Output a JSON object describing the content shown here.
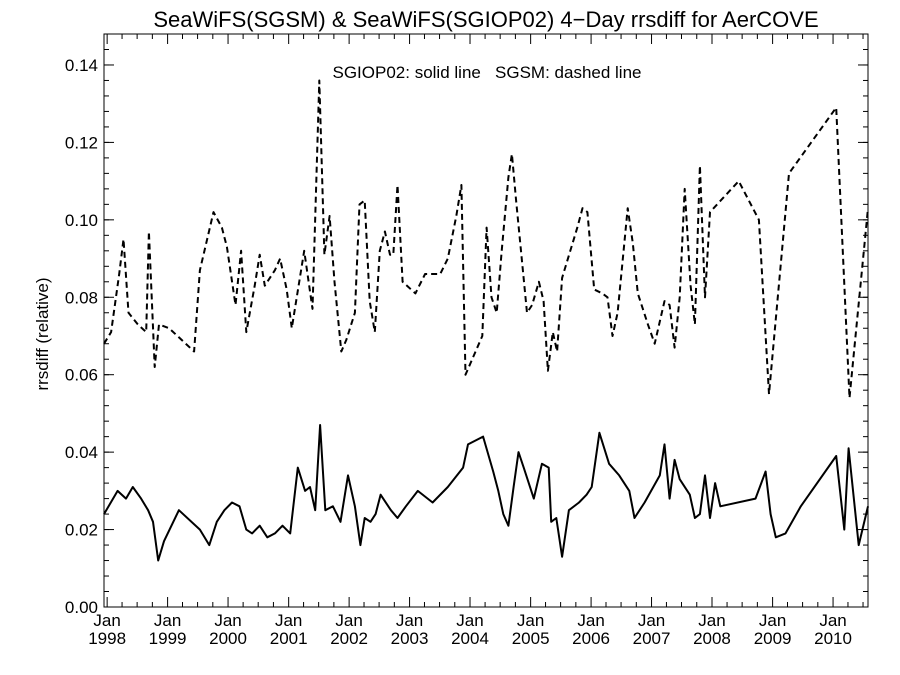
{
  "chart_data": {
    "type": "line",
    "title": "SeaWiFS(SGSM) & SeaWiFS(SGIOP02) 4−Day rrsdiff for AerCOVE",
    "ylabel": "rrsdiff (relative)",
    "xlabel": "",
    "annotation": "SGIOP02: solid line   SGSM: dashed line",
    "x_axis": "date",
    "xlim": [
      "1997-12-13",
      "2010-07-31"
    ],
    "ylim": [
      0,
      0.148
    ],
    "y_ticks": [
      "0.00",
      "0.02",
      "0.04",
      "0.06",
      "0.08",
      "0.10",
      "0.12",
      "0.14"
    ],
    "y_tick_values": [
      0,
      0.02,
      0.04,
      0.06,
      0.08,
      0.1,
      0.12,
      0.14
    ],
    "x_ticks": [
      {
        "date": "1998-01-01",
        "month": "Jan",
        "year": "1998"
      },
      {
        "date": "1999-01-01",
        "month": "Jan",
        "year": "1999"
      },
      {
        "date": "2000-01-01",
        "month": "Jan",
        "year": "2000"
      },
      {
        "date": "2001-01-01",
        "month": "Jan",
        "year": "2001"
      },
      {
        "date": "2002-01-01",
        "month": "Jan",
        "year": "2002"
      },
      {
        "date": "2003-01-01",
        "month": "Jan",
        "year": "2003"
      },
      {
        "date": "2004-01-01",
        "month": "Jan",
        "year": "2004"
      },
      {
        "date": "2005-01-01",
        "month": "Jan",
        "year": "2005"
      },
      {
        "date": "2006-01-01",
        "month": "Jan",
        "year": "2006"
      },
      {
        "date": "2007-01-01",
        "month": "Jan",
        "year": "2007"
      },
      {
        "date": "2008-01-01",
        "month": "Jan",
        "year": "2008"
      },
      {
        "date": "2009-01-01",
        "month": "Jan",
        "year": "2009"
      },
      {
        "date": "2010-01-01",
        "month": "Jan",
        "year": "2010"
      }
    ],
    "grid": false,
    "series": [
      {
        "name": "SGSM",
        "style": "dashed",
        "color": "#000000",
        "points": [
          [
            "1997-12-13",
            0.068
          ],
          [
            "1998-01-25",
            0.071
          ],
          [
            "1998-03-15",
            0.086
          ],
          [
            "1998-04-10",
            0.095
          ],
          [
            "1998-05-10",
            0.076
          ],
          [
            "1998-07-05",
            0.073
          ],
          [
            "1998-08-25",
            0.071
          ],
          [
            "1998-09-10",
            0.097
          ],
          [
            "1998-10-15",
            0.062
          ],
          [
            "1998-11-10",
            0.073
          ],
          [
            "1999-01-10",
            0.072
          ],
          [
            "1999-06-10",
            0.066
          ],
          [
            "1999-07-15",
            0.087
          ],
          [
            "1999-10-05",
            0.102
          ],
          [
            "1999-11-25",
            0.098
          ],
          [
            "1999-12-25",
            0.093
          ],
          [
            "2000-02-15",
            0.078
          ],
          [
            "2000-03-20",
            0.092
          ],
          [
            "2000-04-20",
            0.071
          ],
          [
            "2000-06-10",
            0.083
          ],
          [
            "2000-07-10",
            0.091
          ],
          [
            "2000-08-10",
            0.083
          ],
          [
            "2000-10-10",
            0.087
          ],
          [
            "2000-11-10",
            0.09
          ],
          [
            "2000-12-20",
            0.082
          ],
          [
            "2001-01-20",
            0.072
          ],
          [
            "2001-04-05",
            0.092
          ],
          [
            "2001-05-25",
            0.077
          ],
          [
            "2001-07-05",
            0.136
          ],
          [
            "2001-08-05",
            0.091
          ],
          [
            "2001-09-05",
            0.101
          ],
          [
            "2001-10-05",
            0.084
          ],
          [
            "2001-11-15",
            0.066
          ],
          [
            "2001-12-15",
            0.069
          ],
          [
            "2002-02-05",
            0.076
          ],
          [
            "2002-03-05",
            0.104
          ],
          [
            "2002-04-05",
            0.105
          ],
          [
            "2002-05-05",
            0.079
          ],
          [
            "2002-06-05",
            0.071
          ],
          [
            "2002-07-05",
            0.092
          ],
          [
            "2002-08-05",
            0.097
          ],
          [
            "2002-09-05",
            0.091
          ],
          [
            "2002-09-25",
            0.091
          ],
          [
            "2002-10-20",
            0.109
          ],
          [
            "2002-11-20",
            0.084
          ],
          [
            "2003-02-05",
            0.081
          ],
          [
            "2003-04-05",
            0.086
          ],
          [
            "2003-07-05",
            0.086
          ],
          [
            "2003-08-20",
            0.09
          ],
          [
            "2003-10-10",
            0.101
          ],
          [
            "2003-11-10",
            0.109
          ],
          [
            "2003-12-05",
            0.06
          ],
          [
            "2004-03-15",
            0.07
          ],
          [
            "2004-04-10",
            0.098
          ],
          [
            "2004-05-10",
            0.08
          ],
          [
            "2004-06-10",
            0.076
          ],
          [
            "2004-07-10",
            0.092
          ],
          [
            "2004-08-20",
            0.111
          ],
          [
            "2004-09-10",
            0.117
          ],
          [
            "2004-10-05",
            0.105
          ],
          [
            "2004-12-10",
            0.076
          ],
          [
            "2005-01-10",
            0.078
          ],
          [
            "2005-02-20",
            0.084
          ],
          [
            "2005-03-20",
            0.079
          ],
          [
            "2005-04-15",
            0.061
          ],
          [
            "2005-05-15",
            0.071
          ],
          [
            "2005-06-10",
            0.066
          ],
          [
            "2005-07-10",
            0.085
          ],
          [
            "2005-10-10",
            0.098
          ],
          [
            "2005-11-10",
            0.103
          ],
          [
            "2005-12-10",
            0.102
          ],
          [
            "2006-01-20",
            0.082
          ],
          [
            "2006-03-10",
            0.081
          ],
          [
            "2006-04-10",
            0.08
          ],
          [
            "2006-05-10",
            0.07
          ],
          [
            "2006-06-10",
            0.076
          ],
          [
            "2006-08-10",
            0.103
          ],
          [
            "2006-09-10",
            0.094
          ],
          [
            "2006-10-10",
            0.081
          ],
          [
            "2006-12-10",
            0.073
          ],
          [
            "2007-01-20",
            0.068
          ],
          [
            "2007-03-20",
            0.079
          ],
          [
            "2007-04-20",
            0.078
          ],
          [
            "2007-05-20",
            0.067
          ],
          [
            "2007-06-20",
            0.08
          ],
          [
            "2007-07-20",
            0.108
          ],
          [
            "2007-08-25",
            0.083
          ],
          [
            "2007-09-20",
            0.073
          ],
          [
            "2007-10-20",
            0.114
          ],
          [
            "2007-11-20",
            0.08
          ],
          [
            "2007-12-20",
            0.102
          ],
          [
            "2008-06-10",
            0.11
          ],
          [
            "2008-10-10",
            0.1
          ],
          [
            "2008-12-10",
            0.055
          ],
          [
            "2009-04-10",
            0.112
          ],
          [
            "2010-01-20",
            0.129
          ],
          [
            "2010-04-10",
            0.054
          ],
          [
            "2010-07-31",
            0.103
          ]
        ]
      },
      {
        "name": "SGIOP02",
        "style": "solid",
        "color": "#000000",
        "points": [
          [
            "1997-12-13",
            0.024
          ],
          [
            "1998-03-05",
            0.03
          ],
          [
            "1998-04-25",
            0.028
          ],
          [
            "1998-06-05",
            0.031
          ],
          [
            "1998-07-25",
            0.028
          ],
          [
            "1998-09-05",
            0.025
          ],
          [
            "1998-10-05",
            0.022
          ],
          [
            "1998-11-05",
            0.012
          ],
          [
            "1998-12-10",
            0.017
          ],
          [
            "1999-03-10",
            0.025
          ],
          [
            "1999-07-15",
            0.02
          ],
          [
            "1999-09-10",
            0.016
          ],
          [
            "1999-10-25",
            0.022
          ],
          [
            "1999-12-10",
            0.025
          ],
          [
            "2000-01-25",
            0.027
          ],
          [
            "2000-03-10",
            0.026
          ],
          [
            "2000-04-20",
            0.02
          ],
          [
            "2000-05-25",
            0.019
          ],
          [
            "2000-07-10",
            0.021
          ],
          [
            "2000-08-25",
            0.018
          ],
          [
            "2000-10-10",
            0.019
          ],
          [
            "2000-11-25",
            0.021
          ],
          [
            "2001-01-10",
            0.019
          ],
          [
            "2001-02-25",
            0.036
          ],
          [
            "2001-04-10",
            0.03
          ],
          [
            "2001-05-10",
            0.031
          ],
          [
            "2001-06-10",
            0.025
          ],
          [
            "2001-07-10",
            0.047
          ],
          [
            "2001-08-10",
            0.025
          ],
          [
            "2001-09-25",
            0.026
          ],
          [
            "2001-11-10",
            0.022
          ],
          [
            "2001-12-25",
            0.034
          ],
          [
            "2002-02-05",
            0.026
          ],
          [
            "2002-03-10",
            0.016
          ],
          [
            "2002-04-05",
            0.023
          ],
          [
            "2002-05-10",
            0.022
          ],
          [
            "2002-06-10",
            0.024
          ],
          [
            "2002-07-10",
            0.029
          ],
          [
            "2002-09-10",
            0.025
          ],
          [
            "2002-10-20",
            0.023
          ],
          [
            "2002-12-10",
            0.026
          ],
          [
            "2003-02-20",
            0.03
          ],
          [
            "2003-05-20",
            0.027
          ],
          [
            "2003-08-20",
            0.031
          ],
          [
            "2003-11-20",
            0.036
          ],
          [
            "2003-12-20",
            0.042
          ],
          [
            "2004-03-20",
            0.044
          ],
          [
            "2004-05-20",
            0.035
          ],
          [
            "2004-06-20",
            0.03
          ],
          [
            "2004-07-20",
            0.024
          ],
          [
            "2004-08-20",
            0.021
          ],
          [
            "2004-09-20",
            0.031
          ],
          [
            "2004-10-20",
            0.04
          ],
          [
            "2004-11-20",
            0.036
          ],
          [
            "2005-01-20",
            0.028
          ],
          [
            "2005-03-10",
            0.037
          ],
          [
            "2005-04-20",
            0.036
          ],
          [
            "2005-05-05",
            0.022
          ],
          [
            "2005-06-05",
            0.023
          ],
          [
            "2005-07-10",
            0.013
          ],
          [
            "2005-08-20",
            0.025
          ],
          [
            "2005-10-20",
            0.027
          ],
          [
            "2005-12-05",
            0.029
          ],
          [
            "2006-01-05",
            0.031
          ],
          [
            "2006-02-20",
            0.045
          ],
          [
            "2006-04-20",
            0.037
          ],
          [
            "2006-06-20",
            0.034
          ],
          [
            "2006-08-20",
            0.03
          ],
          [
            "2006-09-20",
            0.023
          ],
          [
            "2006-11-20",
            0.027
          ],
          [
            "2007-02-20",
            0.034
          ],
          [
            "2007-03-20",
            0.042
          ],
          [
            "2007-04-20",
            0.028
          ],
          [
            "2007-05-20",
            0.038
          ],
          [
            "2007-06-20",
            0.033
          ],
          [
            "2007-08-20",
            0.029
          ],
          [
            "2007-09-20",
            0.023
          ],
          [
            "2007-10-20",
            0.024
          ],
          [
            "2007-11-20",
            0.034
          ],
          [
            "2007-12-20",
            0.023
          ],
          [
            "2008-01-20",
            0.032
          ],
          [
            "2008-02-20",
            0.026
          ],
          [
            "2008-09-20",
            0.028
          ],
          [
            "2008-11-20",
            0.035
          ],
          [
            "2008-12-20",
            0.024
          ],
          [
            "2009-01-20",
            0.018
          ],
          [
            "2009-03-20",
            0.019
          ],
          [
            "2009-06-20",
            0.026
          ],
          [
            "2010-01-20",
            0.039
          ],
          [
            "2010-03-10",
            0.02
          ],
          [
            "2010-04-05",
            0.041
          ],
          [
            "2010-06-05",
            0.016
          ],
          [
            "2010-07-31",
            0.026
          ]
        ]
      }
    ]
  }
}
